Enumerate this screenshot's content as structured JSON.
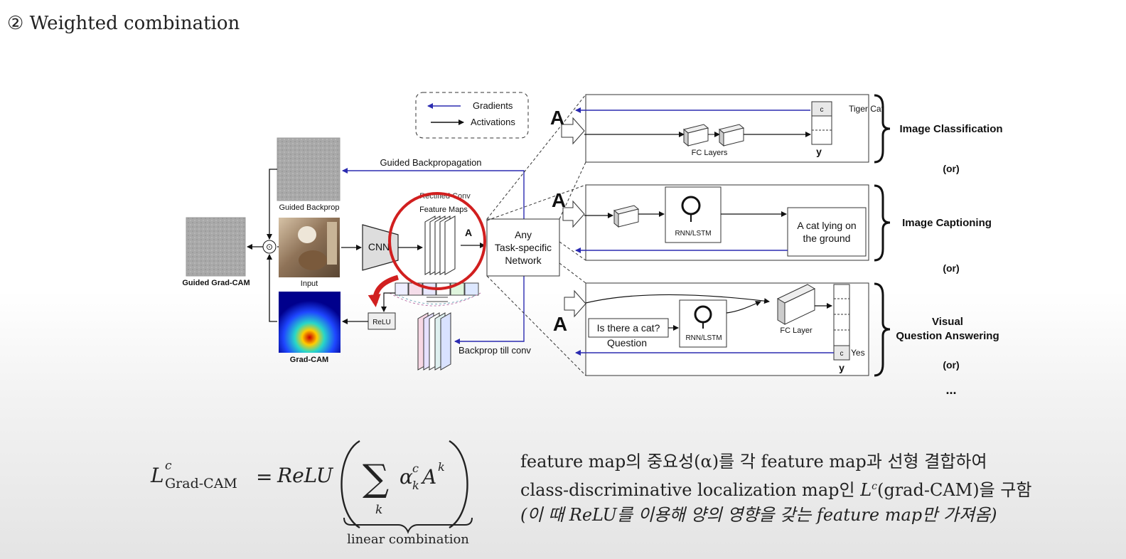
{
  "slide": {
    "title": "② Weighted combination"
  },
  "legend": {
    "gradients": "Gradients",
    "activations": "Activations"
  },
  "left": {
    "guided_backprop_label": "Guided Backprop",
    "input_label": "Input",
    "guided_gradcam_label": "Guided Grad-CAM",
    "gradcam_label": "Grad-CAM",
    "guided_backpropagation_arrow": "Guided Backpropagation",
    "backprop_till_conv": "Backprop till conv",
    "relu_box": "ReLU",
    "cnn_box": "CNN",
    "rectified_conv_label": "Rectified Conv",
    "feature_maps_label": "Feature Maps",
    "a_label": "A",
    "dot_operator": "⊙"
  },
  "network": {
    "line1": "Any",
    "line2": "Task-specific",
    "line3": "Network"
  },
  "tasks": {
    "classification": {
      "a_label": "A",
      "class_label": "Tiger Cat",
      "c_label": "c",
      "fc_label": "FC Layers",
      "y_label": "y",
      "task_name": "Image Classification"
    },
    "captioning": {
      "a_label": "A",
      "rnn_label": "RNN/LSTM",
      "caption_line1": "A cat lying on",
      "caption_line2": "the ground",
      "task_name": "Image Captioning"
    },
    "vqa": {
      "a_label": "A",
      "question_text": "Is there a cat?",
      "question_label": "Question",
      "rnn_label": "RNN/LSTM",
      "fc_label": "FC Layer",
      "answer_label": "Yes",
      "c_label": "c",
      "y_label": "y",
      "task_name_line1": "Visual",
      "task_name_line2": "Question Answering"
    },
    "or_1": "(or)",
    "or_2": "(or)",
    "or_3": "(or)",
    "ellipsis": "..."
  },
  "formula": {
    "lhs_symbol": "L",
    "lhs_sup": "c",
    "lhs_sub": "Grad-CAM",
    "equals": "=",
    "relu_word": "ReLU",
    "sum_symbol": "∑",
    "sum_index": "k",
    "alpha": "α",
    "alpha_sup": "c",
    "alpha_sub": "k",
    "a_symbol": "A",
    "a_sup": "k",
    "underbrace_label": "linear combination"
  },
  "description": {
    "line1": "feature map의 중요성(α)를 각 feature map과 선형 결합하여",
    "line2_part1": "class-discriminative localization map인 ",
    "line2_L": "L",
    "line2_sup": "c",
    "line2_part2": "(grad-CAM)을 구함",
    "line3": "(이 때 ReLU를 이용해 양의 영향을 갖는 feature map만 가져옴)"
  },
  "colors": {
    "gradient_arrow": "#2b2bb0",
    "highlight_red": "#d11f1f",
    "text_dark": "#222222"
  }
}
